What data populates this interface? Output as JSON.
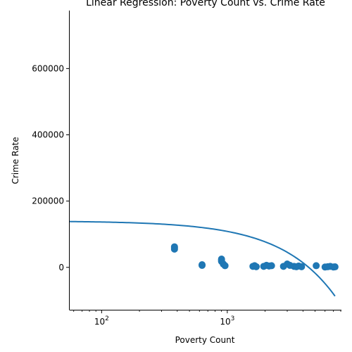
{
  "chart_data": {
    "type": "scatter",
    "title": "Linear Regression: Poverty Count vs. Crime Rate",
    "xlabel": "Poverty Count",
    "ylabel": "Crime Rate",
    "xscale": "log",
    "xlim": [
      55,
      8100
    ],
    "ylim": [
      -128000,
      775000
    ],
    "grid": false,
    "x_ticks": [
      {
        "value": 100,
        "base": "10",
        "exp": "2"
      },
      {
        "value": 1000,
        "base": "10",
        "exp": "3"
      }
    ],
    "y_ticks": [
      {
        "value": 0,
        "label": "0"
      },
      {
        "value": 200000,
        "label": "200000"
      },
      {
        "value": 400000,
        "label": "400000"
      },
      {
        "value": 600000,
        "label": "600000"
      }
    ],
    "points": [
      {
        "x": 380,
        "y": 55000
      },
      {
        "x": 380,
        "y": 59000
      },
      {
        "x": 380,
        "y": 62000
      },
      {
        "x": 630,
        "y": 6000
      },
      {
        "x": 630,
        "y": 8000
      },
      {
        "x": 900,
        "y": 18000
      },
      {
        "x": 900,
        "y": 22000
      },
      {
        "x": 900,
        "y": 25000
      },
      {
        "x": 930,
        "y": 10000
      },
      {
        "x": 960,
        "y": 5000
      },
      {
        "x": 1600,
        "y": 3000
      },
      {
        "x": 1650,
        "y": 5000
      },
      {
        "x": 1700,
        "y": 2000
      },
      {
        "x": 1950,
        "y": 3000
      },
      {
        "x": 2050,
        "y": 6000
      },
      {
        "x": 2150,
        "y": 4000
      },
      {
        "x": 2250,
        "y": 5000
      },
      {
        "x": 2800,
        "y": 3000
      },
      {
        "x": 3000,
        "y": 10000
      },
      {
        "x": 3150,
        "y": 6000
      },
      {
        "x": 3400,
        "y": 3000
      },
      {
        "x": 3550,
        "y": 2000
      },
      {
        "x": 3700,
        "y": 4000
      },
      {
        "x": 3900,
        "y": 2000
      },
      {
        "x": 5100,
        "y": 5000
      },
      {
        "x": 6000,
        "y": 1000
      },
      {
        "x": 6300,
        "y": 2000
      },
      {
        "x": 6600,
        "y": 3000
      },
      {
        "x": 7000,
        "y": 1000
      },
      {
        "x": 7200,
        "y": 1500
      }
    ],
    "regression": {
      "intercept": 140000,
      "slope": -31.5,
      "x_range": [
        55,
        7200
      ]
    },
    "colors": {
      "points": "#1f77b4",
      "line": "#1f77b4",
      "axes": "#000000"
    }
  }
}
